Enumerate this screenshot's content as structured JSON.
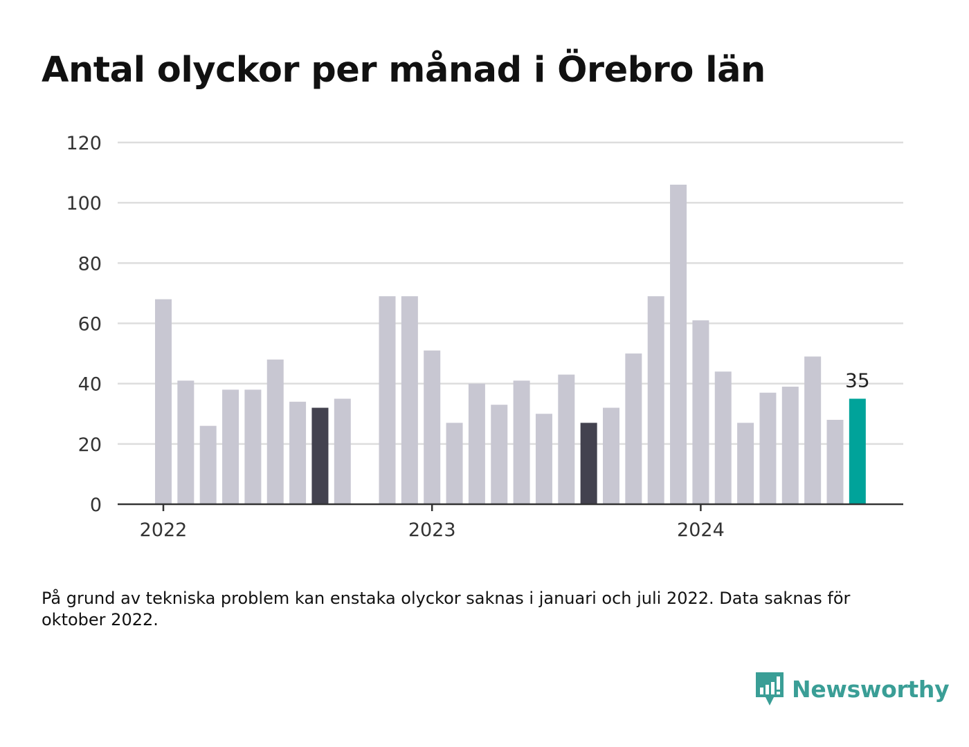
{
  "title": "Antal olyckor per månad i Örebro län",
  "footnote": "På grund av tekniska problem kan enstaka olyckor saknas i januari och juli 2022. Data saknas för oktober 2022.",
  "brand": {
    "name": "Newsworthy",
    "color": "#3a9e96",
    "icon": "newsworthy-logo-icon"
  },
  "colors": {
    "default": "#c8c7d2",
    "dark": "#43424f",
    "highlight": "#00a39a",
    "grid": "#dddddd",
    "axis": "#333333"
  },
  "chart_data": {
    "type": "bar",
    "title": "Antal olyckor per månad i Örebro län",
    "xlabel": "",
    "ylabel": "",
    "ylim": [
      0,
      120
    ],
    "yticks": [
      0,
      20,
      40,
      60,
      80,
      100,
      120
    ],
    "xtick_labels": [
      "2022",
      "2023",
      "2024"
    ],
    "grid": true,
    "categories": [
      "2022-01",
      "2022-02",
      "2022-03",
      "2022-04",
      "2022-05",
      "2022-06",
      "2022-07",
      "2022-08",
      "2022-09",
      "2022-10",
      "2022-11",
      "2022-12",
      "2023-01",
      "2023-02",
      "2023-03",
      "2023-04",
      "2023-05",
      "2023-06",
      "2023-07",
      "2023-08",
      "2023-09",
      "2023-10",
      "2023-11",
      "2023-12",
      "2024-01",
      "2024-02",
      "2024-03",
      "2024-04",
      "2024-05",
      "2024-06",
      "2024-07",
      "2024-08"
    ],
    "values": [
      68,
      41,
      26,
      38,
      38,
      48,
      34,
      32,
      35,
      null,
      69,
      69,
      51,
      27,
      40,
      33,
      41,
      30,
      43,
      27,
      32,
      50,
      69,
      106,
      61,
      44,
      27,
      37,
      39,
      49,
      28,
      35
    ],
    "dark_categories": [
      "2022-08",
      "2023-08"
    ],
    "highlight_category": "2024-08",
    "highlight_label": "35"
  }
}
